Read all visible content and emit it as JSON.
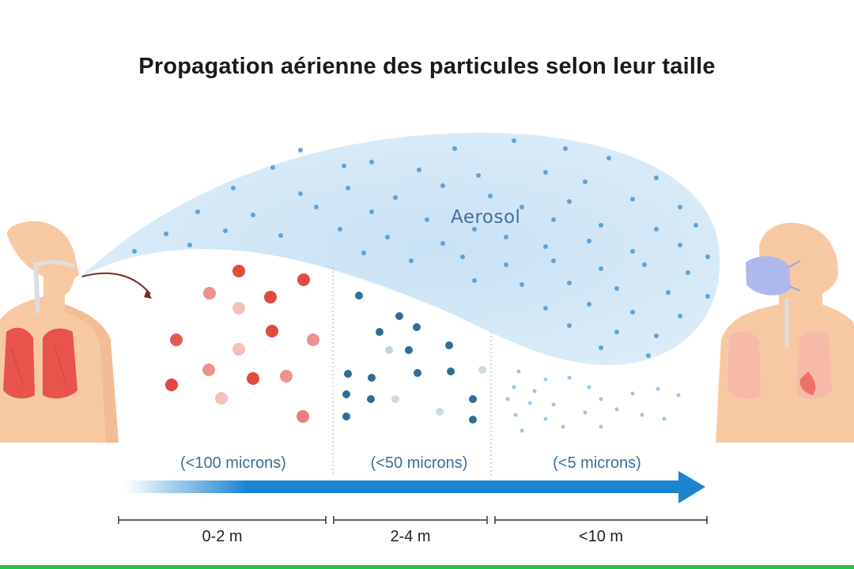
{
  "title": "Propagation aérienne des particules selon leur taille",
  "cloud_label": "Aerosol",
  "zones": [
    {
      "size_label": "(<100 microns)",
      "distance_label": "0-2 m"
    },
    {
      "size_label": "(<50 microns)",
      "distance_label": "2-4 m"
    },
    {
      "size_label": "(<5 microns)",
      "distance_label": "<10 m"
    }
  ],
  "colors": {
    "skin": "#f7c9a3",
    "skin_shadow": "#eeb58c",
    "lungs": "#e8534b",
    "cloud": "#d4e8f7",
    "aerosol_dot": "#4a96d4",
    "large_droplet": "#e04a3f",
    "medium_droplet": "#2e6d96",
    "small_droplet": "#8fc3e6",
    "arrow": "#1d84cf",
    "mask": "#aeb8ec",
    "accent_bar": "#2fbf4a"
  },
  "icons": {
    "left_person": "person-exhaling-icon",
    "right_person": "person-with-mask-icon",
    "direction": "arrow-right-icon"
  }
}
